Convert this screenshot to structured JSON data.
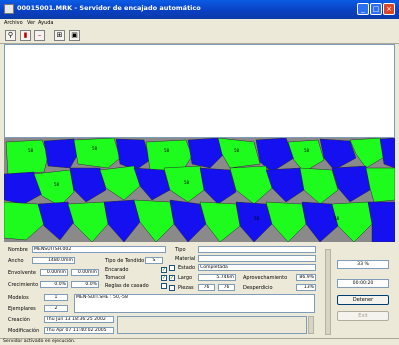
{
  "window": {
    "title": "00015001.MRK - Servidor de encajado automático",
    "controls": [
      "minimize",
      "maximize",
      "close"
    ]
  },
  "menu": [
    "Archivo",
    "Ver",
    "Ayuda"
  ],
  "toolbar": {
    "icons": [
      "tool-icon",
      "red-marker-icon",
      "minus-icon",
      "network-icon",
      "screen-icon"
    ]
  },
  "colors": {
    "piece_green": "#1efc1e",
    "piece_blue": "#1410f0",
    "canvas_bg": "#8a8a8a",
    "title_bar": "#0a4fd6"
  },
  "marker": {
    "piece_label": "58",
    "label_count": 9
  },
  "info": {
    "nombre_label": "Nombre",
    "nombre_value": "MENSUITSH.002",
    "ancho_label": "Ancho",
    "ancho_value": "1480.0mm",
    "tipo_tendido_label": "Tipo de Tendido",
    "tipo_tendido_value": "S",
    "envolvente_label": "Envolvente",
    "envolvente_v1": "0.00mm",
    "envolvente_v2": "0.00mm",
    "encarado_label": "Encarado",
    "tomacol_label": "Tomacol",
    "crecimiento_label": "Crecimiento",
    "crecimiento_v1": "0.0%",
    "crecimiento_v2": "0.0%",
    "reglas_label": "Reglas de casado",
    "modelos_label": "Modelos",
    "modelos_value": "1",
    "modelo_desc": "MEN-SUIT.SHE : 50,-58",
    "ejemplares_label": "Ejemplares",
    "ejemplares_value": "2",
    "creacion_label": "Creación",
    "creacion_value": "Thu Jun 13 18:36:25 2002",
    "modificacion_label": "Modificación",
    "modificacion_value": "Thu Apr 07 11:40:02 2005",
    "tipo_label": "Tipo",
    "material_label": "Material",
    "estado_label": "Estado",
    "estado_value": "Completada",
    "largo_label": "Largo",
    "largo_value": "5.746m",
    "aprovechamiento_label": "Aprovechamiento",
    "aprovechamiento_value": "86.9%",
    "piezas_label": "Piezas",
    "piezas_v1": "76",
    "piezas_v2": "76",
    "desperdicio_label": "Desperdicio",
    "desperdicio_value": "13%",
    "encarado_checked": true,
    "tomacol_checked": true,
    "estado_checked": false,
    "largo_checked": true,
    "piezas_checked": false
  },
  "right": {
    "percent": "33 %",
    "time": "00:00:20",
    "detener_label": "Detener",
    "exit_label": "Exit"
  },
  "status": {
    "text": "Servidor activado en ejecución."
  }
}
